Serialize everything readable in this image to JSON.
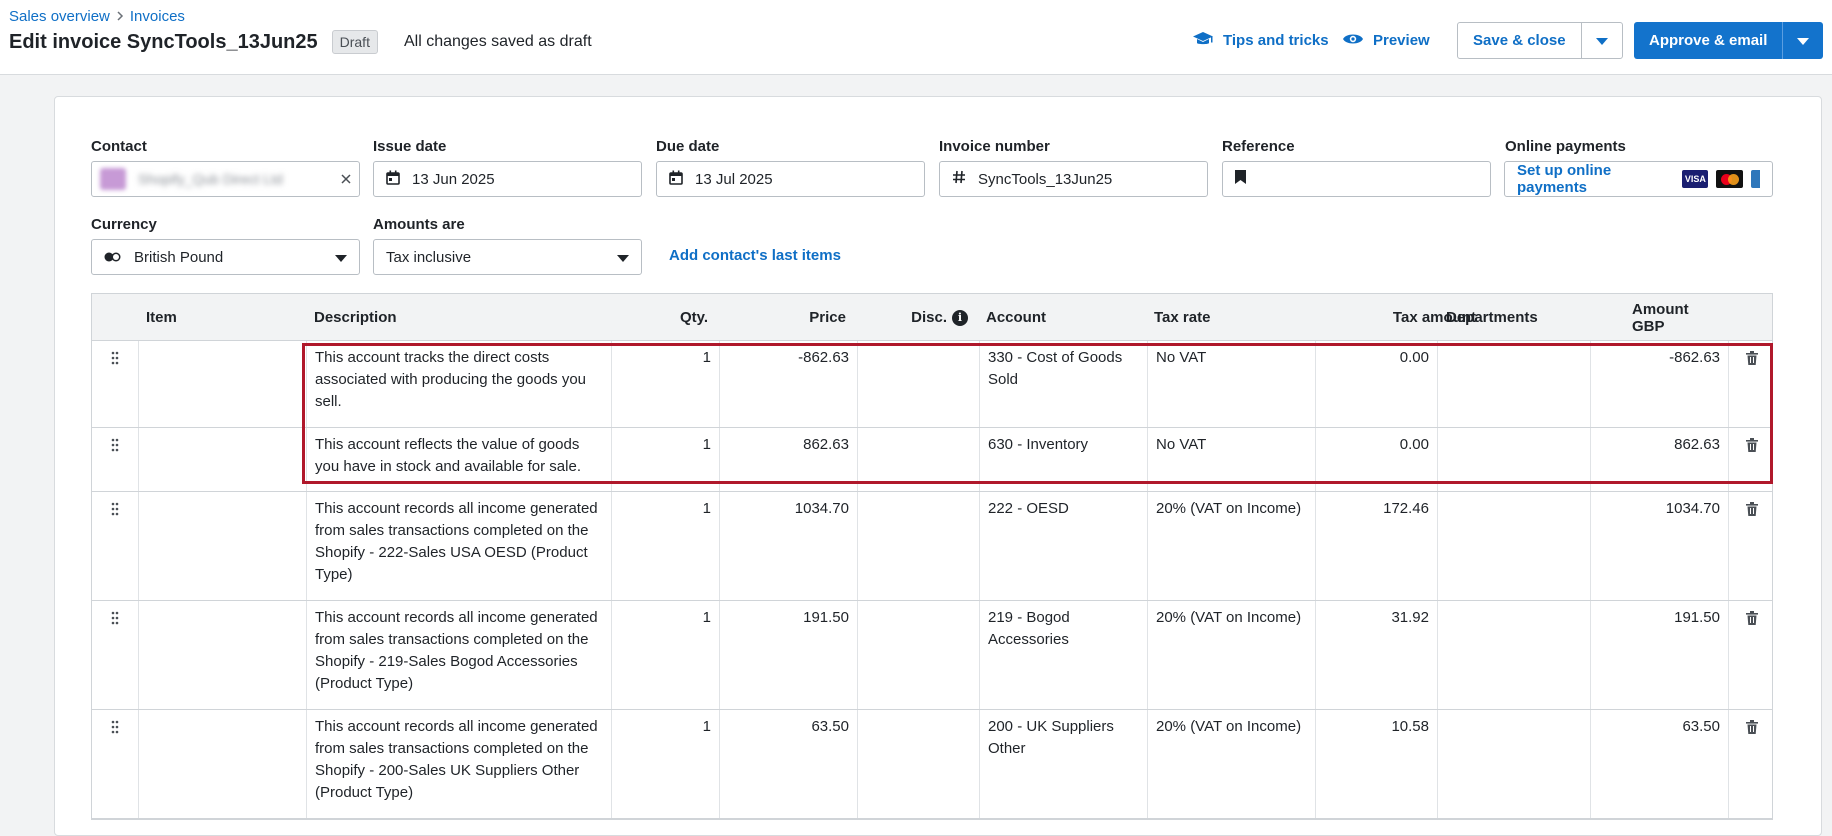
{
  "breadcrumb": {
    "item1": "Sales overview",
    "item2": "Invoices"
  },
  "header": {
    "title": "Edit invoice SyncTools_13Jun25",
    "status_badge": "Draft",
    "save_status": "All changes saved as draft",
    "tips_label": "Tips and tricks",
    "preview_label": "Preview",
    "save_close_label": "Save & close",
    "approve_label": "Approve & email"
  },
  "form": {
    "contact": {
      "label": "Contact",
      "value": "Shopify_Qub Direct Ltd"
    },
    "issue_date": {
      "label": "Issue date",
      "value": "13 Jun 2025"
    },
    "due_date": {
      "label": "Due date",
      "value": "13 Jul 2025"
    },
    "invoice_number": {
      "label": "Invoice number",
      "value": "SyncTools_13Jun25"
    },
    "reference": {
      "label": "Reference",
      "value": ""
    },
    "online_payments": {
      "label": "Online payments",
      "button": "Set up online payments",
      "visa": "VISA"
    },
    "currency": {
      "label": "Currency",
      "value": "British Pound"
    },
    "amounts_are": {
      "label": "Amounts are",
      "value": "Tax inclusive"
    },
    "add_last_items": "Add contact's last items"
  },
  "table": {
    "headers": {
      "item": "Item",
      "description": "Description",
      "qty": "Qty.",
      "price": "Price",
      "disc": "Disc.",
      "account": "Account",
      "tax_rate": "Tax rate",
      "tax_amount": "Tax amount",
      "departments": "Departments",
      "amount": "Amount GBP"
    },
    "rows": [
      {
        "item": "",
        "description": "This account tracks the direct costs associated with producing the goods you sell.",
        "qty": "1",
        "price": "-862.63",
        "disc": "",
        "account": "330 - Cost of Goods Sold",
        "tax_rate": "No VAT",
        "tax_amount": "0.00",
        "departments": "",
        "amount": "-862.63"
      },
      {
        "item": "",
        "description": "This account reflects the value of goods you have in stock and available for sale.",
        "qty": "1",
        "price": "862.63",
        "disc": "",
        "account": "630 - Inventory",
        "tax_rate": "No VAT",
        "tax_amount": "0.00",
        "departments": "",
        "amount": "862.63"
      },
      {
        "item": "",
        "description": "This account records all income generated from sales transactions completed on the Shopify - 222-Sales USA OESD (Product Type)",
        "qty": "1",
        "price": "1034.70",
        "disc": "",
        "account": "222 - OESD",
        "tax_rate": "20% (VAT on Income)",
        "tax_amount": "172.46",
        "departments": "",
        "amount": "1034.70"
      },
      {
        "item": "",
        "description": "This account records all income generated from sales transactions completed on the Shopify - 219-Sales Bogod Accessories (Product Type)",
        "qty": "1",
        "price": "191.50",
        "disc": "",
        "account": "219 - Bogod Accessories",
        "tax_rate": "20% (VAT on Income)",
        "tax_amount": "31.92",
        "departments": "",
        "amount": "191.50"
      },
      {
        "item": "",
        "description": "This account records all income generated from sales transactions completed on the Shopify - 200-Sales UK Suppliers Other (Product Type)",
        "qty": "1",
        "price": "63.50",
        "disc": "",
        "account": "200 - UK Suppliers Other",
        "tax_rate": "20% (VAT on Income)",
        "tax_amount": "10.58",
        "departments": "",
        "amount": "63.50"
      }
    ]
  },
  "colors": {
    "accent": "#1373cc",
    "link": "#0f6fc6",
    "highlight_border": "#b0182b"
  }
}
